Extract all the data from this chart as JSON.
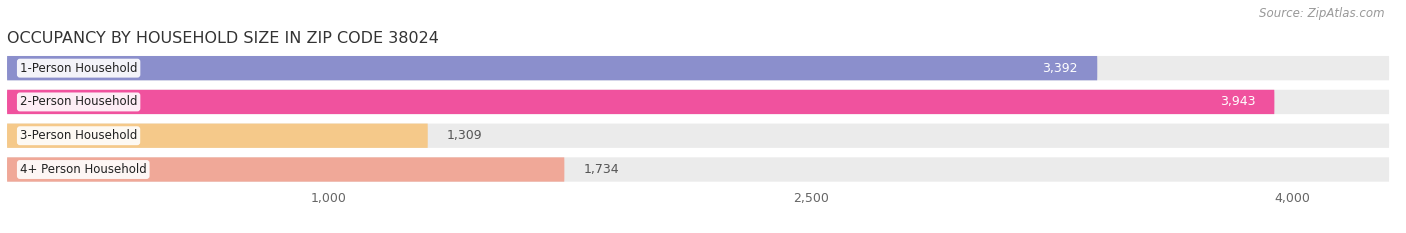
{
  "title": "OCCUPANCY BY HOUSEHOLD SIZE IN ZIP CODE 38024",
  "source": "Source: ZipAtlas.com",
  "categories": [
    "1-Person Household",
    "2-Person Household",
    "3-Person Household",
    "4+ Person Household"
  ],
  "values": [
    3392,
    3943,
    1309,
    1734
  ],
  "bar_colors": [
    "#8b8fcc",
    "#f0529e",
    "#f5c98a",
    "#f0a898"
  ],
  "label_colors": [
    "#ffffff",
    "#ffffff",
    "#666666",
    "#666666"
  ],
  "background_color": "#ffffff",
  "bar_background_color": "#ebebeb",
  "xlim": [
    0,
    4300
  ],
  "xticks": [
    1000,
    2500,
    4000
  ],
  "title_fontsize": 11.5,
  "source_fontsize": 8.5,
  "bar_height": 0.72,
  "bar_gap": 1.0,
  "bar_label_inside_threshold": 2000,
  "value_fontsize": 9,
  "cat_fontsize": 8.5
}
